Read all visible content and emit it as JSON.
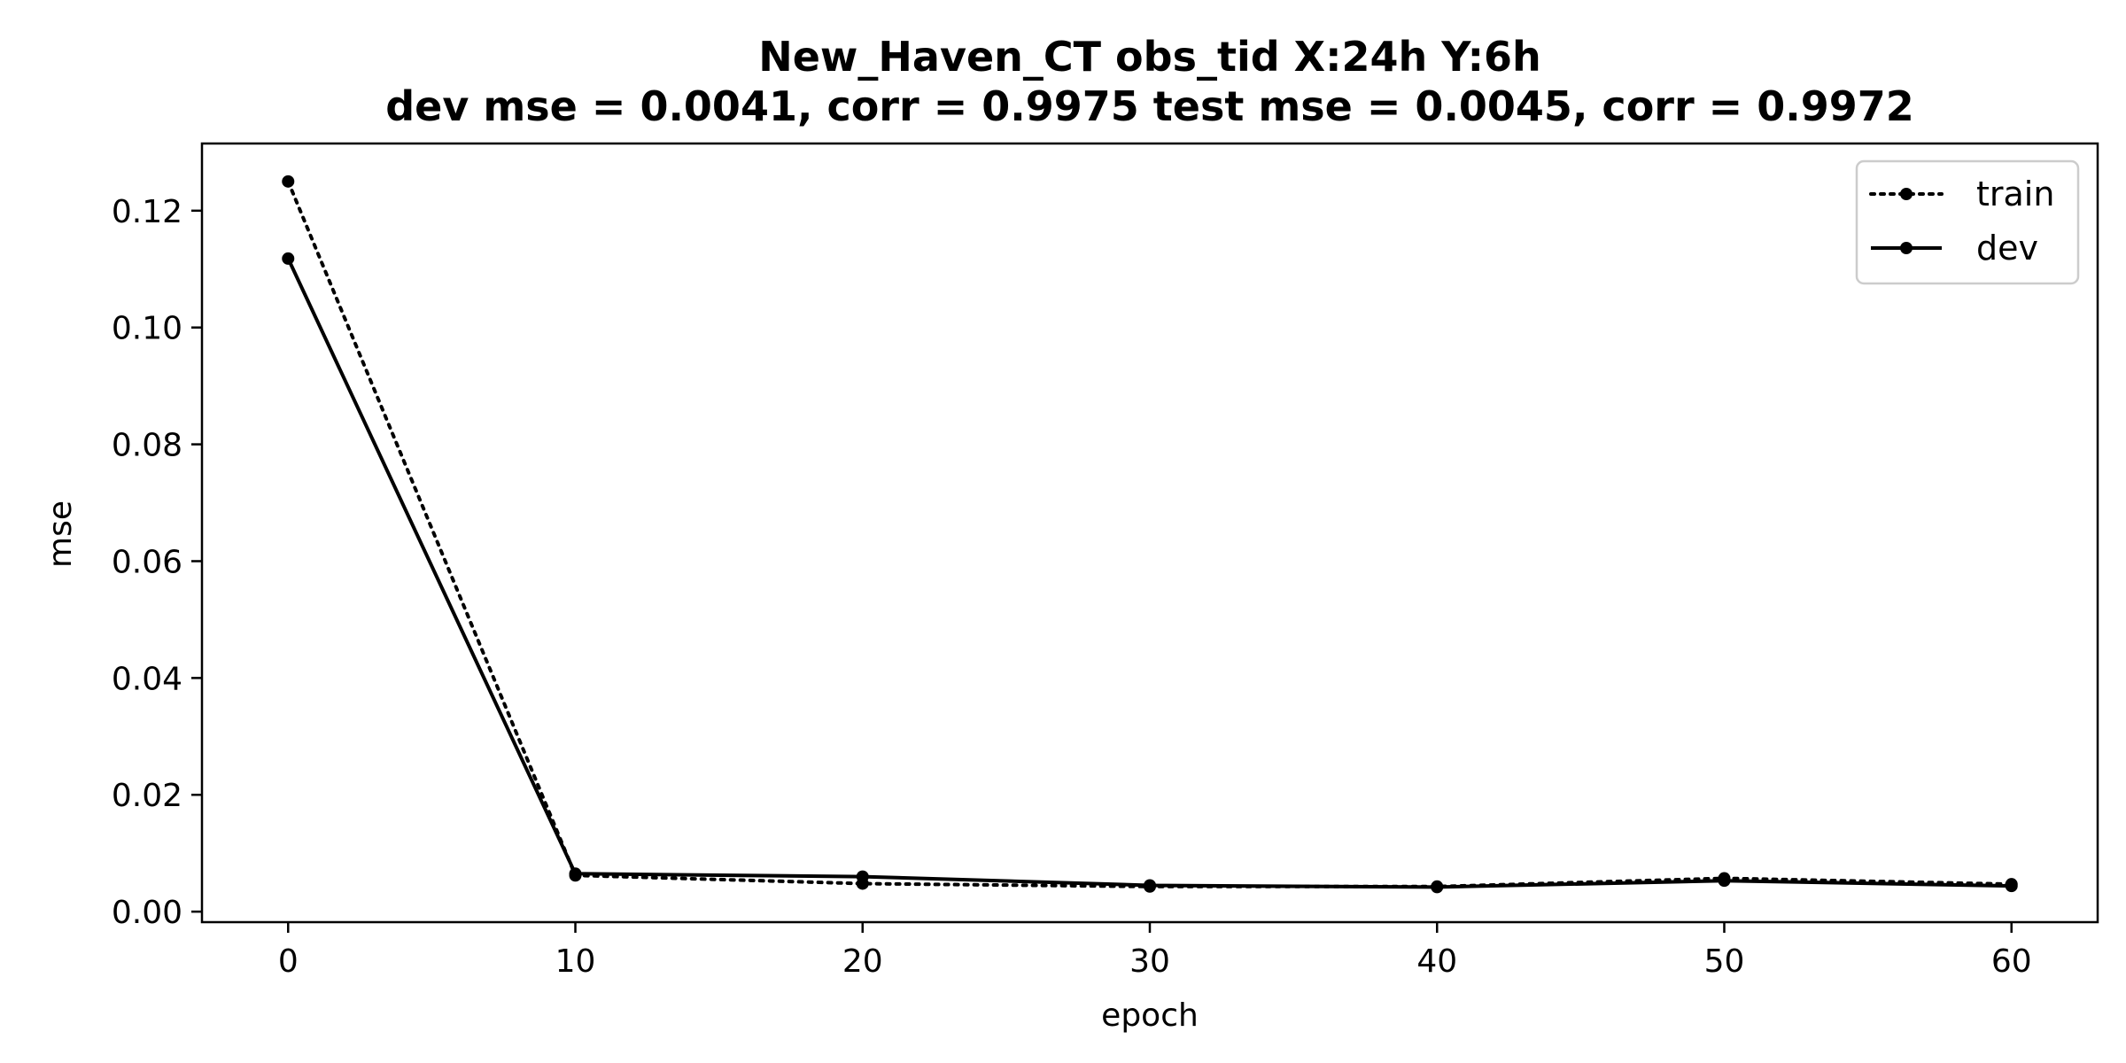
{
  "chart_data": {
    "type": "line",
    "title": "New_Haven_CT   obs_tid   X:24h   Y:6h",
    "subtitle": "dev mse = 0.0041, corr = 0.9975   test mse = 0.0045, corr = 0.9972",
    "xlabel": "epoch",
    "ylabel": "mse",
    "xlim": [
      -3,
      63
    ],
    "ylim": [
      -0.0018,
      0.1315
    ],
    "x_ticks": [
      0,
      10,
      20,
      30,
      40,
      50,
      60
    ],
    "x_tick_labels": [
      "0",
      "10",
      "20",
      "30",
      "40",
      "50",
      "60"
    ],
    "y_ticks": [
      0.0,
      0.02,
      0.04,
      0.06,
      0.08,
      0.1,
      0.12
    ],
    "y_tick_labels": [
      "0.00",
      "0.02",
      "0.04",
      "0.06",
      "0.08",
      "0.10",
      "0.12"
    ],
    "grid": false,
    "legend_position": "top-right",
    "x": [
      0,
      10,
      20,
      30,
      40,
      50,
      60
    ],
    "series": [
      {
        "name": "train",
        "style": "dotted",
        "marker": "circle",
        "color": "#000000",
        "values": [
          0.125,
          0.0062,
          0.0048,
          0.0043,
          0.0043,
          0.0057,
          0.0047
        ]
      },
      {
        "name": "dev",
        "style": "solid",
        "marker": "circle",
        "color": "#000000",
        "values": [
          0.1118,
          0.0065,
          0.006,
          0.0045,
          0.0042,
          0.0053,
          0.0044
        ]
      }
    ]
  }
}
